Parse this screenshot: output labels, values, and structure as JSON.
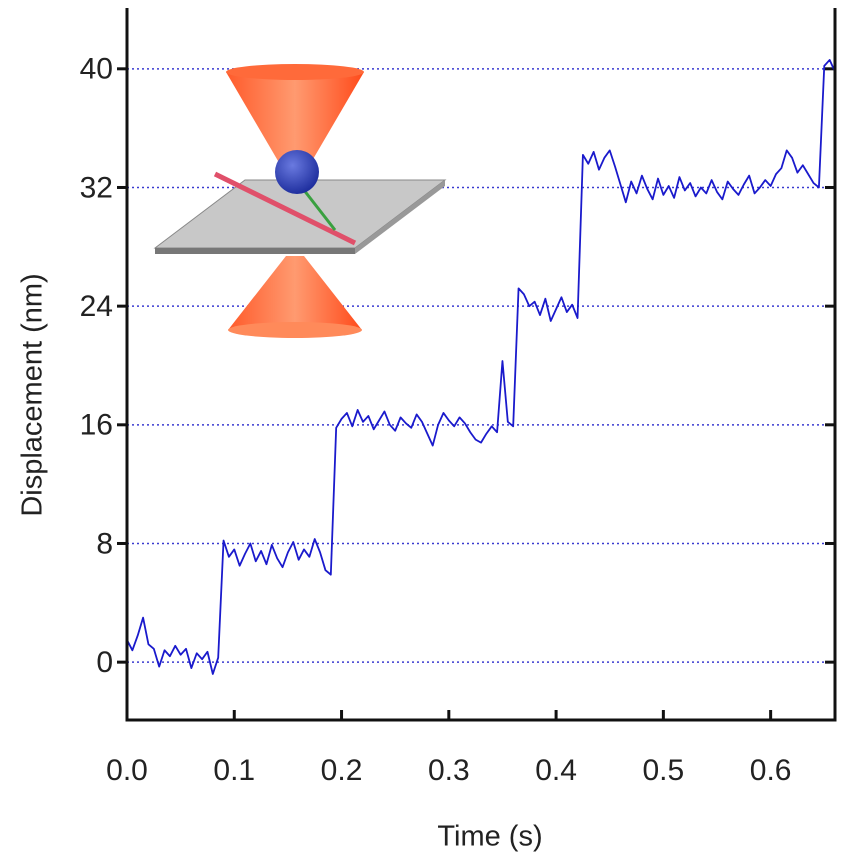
{
  "chart_data": {
    "type": "line",
    "xlabel": "Time (s)",
    "ylabel": "Displacement (nm)",
    "color": "#1a1acc",
    "grid_color": "#3a3ad0",
    "grid": true,
    "xlim": [
      0,
      0.66
    ],
    "ylim": [
      -3.9,
      44.1
    ],
    "xticks": [
      {
        "value": 0,
        "label": "0.0"
      },
      0.1,
      0.2,
      0.3,
      0.4,
      0.5,
      0.6
    ],
    "yticks": [
      0,
      8,
      16,
      24,
      32,
      40
    ],
    "x": [
      0,
      0.005,
      0.01,
      0.015,
      0.02,
      0.025,
      0.03,
      0.035,
      0.04,
      0.045,
      0.05,
      0.055,
      0.06,
      0.065,
      0.07,
      0.075,
      0.08,
      0.085,
      0.09,
      0.095,
      0.1,
      0.105,
      0.11,
      0.115,
      0.12,
      0.125,
      0.13,
      0.135,
      0.14,
      0.145,
      0.15,
      0.155,
      0.16,
      0.165,
      0.17,
      0.175,
      0.18,
      0.185,
      0.19,
      0.195,
      0.2,
      0.205,
      0.21,
      0.215,
      0.22,
      0.225,
      0.23,
      0.235,
      0.24,
      0.245,
      0.25,
      0.255,
      0.26,
      0.265,
      0.27,
      0.275,
      0.28,
      0.285,
      0.29,
      0.295,
      0.3,
      0.305,
      0.31,
      0.315,
      0.32,
      0.325,
      0.33,
      0.335,
      0.34,
      0.345,
      0.35,
      0.355,
      0.36,
      0.365,
      0.37,
      0.375,
      0.38,
      0.385,
      0.39,
      0.395,
      0.4,
      0.405,
      0.41,
      0.415,
      0.42,
      0.425,
      0.43,
      0.435,
      0.44,
      0.445,
      0.45,
      0.455,
      0.46,
      0.465,
      0.47,
      0.475,
      0.48,
      0.485,
      0.49,
      0.495,
      0.5,
      0.505,
      0.51,
      0.515,
      0.52,
      0.525,
      0.53,
      0.535,
      0.54,
      0.545,
      0.55,
      0.555,
      0.56,
      0.565,
      0.57,
      0.575,
      0.58,
      0.585,
      0.59,
      0.595,
      0.6,
      0.605,
      0.61,
      0.615,
      0.62,
      0.625,
      0.63,
      0.635,
      0.64,
      0.645,
      0.65,
      0.655,
      0.66
    ],
    "values": [
      1.5,
      0.8,
      1.8,
      3.0,
      1.2,
      0.9,
      -0.3,
      0.8,
      0.4,
      1.1,
      0.5,
      0.9,
      -0.4,
      0.6,
      0.2,
      0.7,
      -0.8,
      0.3,
      8.2,
      7.1,
      7.6,
      6.5,
      7.3,
      8.0,
      6.8,
      7.5,
      6.6,
      7.9,
      7.0,
      6.4,
      7.4,
      8.1,
      6.9,
      7.6,
      7.1,
      8.3,
      7.4,
      6.2,
      5.9,
      15.8,
      16.4,
      16.8,
      15.9,
      17.0,
      16.2,
      16.6,
      15.7,
      16.3,
      16.9,
      16.0,
      15.6,
      16.5,
      16.1,
      15.8,
      16.7,
      16.2,
      15.4,
      14.6,
      16.0,
      16.8,
      16.3,
      15.9,
      16.5,
      16.1,
      15.5,
      15.0,
      14.8,
      15.4,
      15.9,
      15.5,
      20.3,
      16.2,
      15.9,
      25.2,
      24.8,
      24.0,
      24.3,
      23.4,
      24.5,
      23.0,
      23.8,
      24.6,
      23.6,
      24.1,
      23.2,
      34.2,
      33.6,
      34.4,
      33.2,
      34.0,
      34.5,
      33.4,
      32.2,
      31.0,
      32.4,
      31.6,
      32.8,
      31.9,
      31.2,
      32.6,
      31.5,
      32.1,
      31.3,
      32.7,
      31.8,
      32.3,
      31.4,
      32.0,
      31.6,
      32.5,
      31.7,
      31.2,
      32.4,
      31.9,
      31.5,
      32.2,
      32.8,
      31.6,
      32.0,
      32.5,
      32.1,
      32.9,
      33.3,
      34.5,
      34.0,
      33.0,
      33.5,
      32.9,
      32.3,
      32.0,
      40.2,
      40.6,
      39.8
    ]
  }
}
